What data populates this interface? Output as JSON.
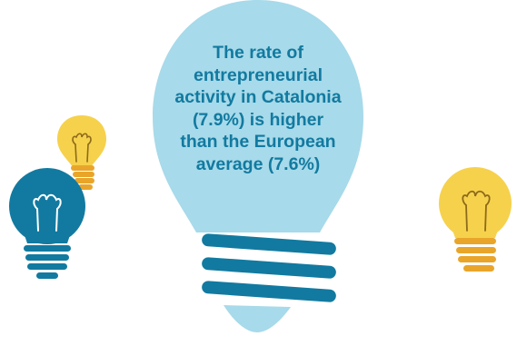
{
  "headline": {
    "lines": [
      "The rate of",
      "entrepreneurial",
      "activity in Catalonia",
      "(7.9%) is higher",
      "than the European",
      "average (7.6%)"
    ]
  },
  "colors": {
    "main_bulb": "#a7daea",
    "main_bulb_base": "#127aa0",
    "headline_text": "#127aa0",
    "small_yellow_bulb": "#f6d14c",
    "small_yellow_bulb_base": "#e9a52a",
    "blue_bulb": "#127aa0",
    "blue_bulb_base": "#127aa0",
    "blue_bulb_filament": "#ffffff",
    "right_yellow_bulb": "#f6d14c",
    "right_yellow_bulb_base": "#e9a52a",
    "filament_dark": "#8c6a1a"
  },
  "icons": [
    "large-lightbulb-icon",
    "small-yellow-lightbulb-icon",
    "blue-lightbulb-icon",
    "right-yellow-lightbulb-icon"
  ]
}
